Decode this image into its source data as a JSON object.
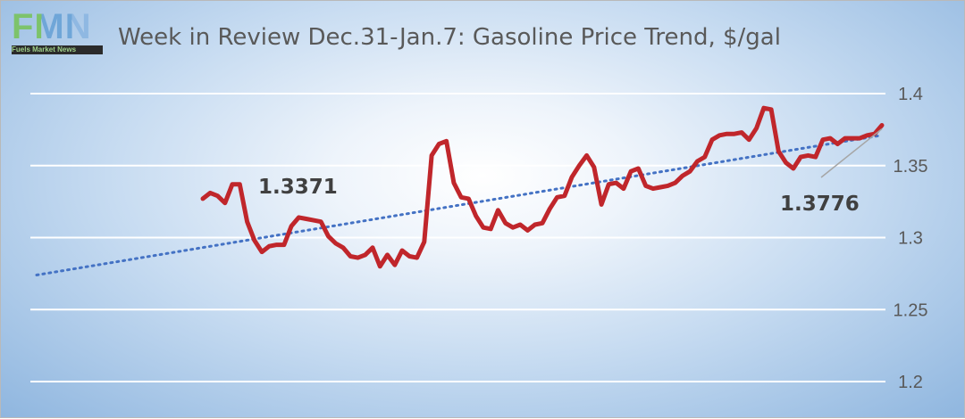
{
  "logo": {
    "letters": "FMN",
    "tagline": "Fuels Market News"
  },
  "chart_data": {
    "type": "line",
    "title": "Week in Review Dec.31-Jan.7: Gasoline Price Trend, $/gal",
    "xlabel": "",
    "ylabel": "",
    "ylim": [
      1.2,
      1.4
    ],
    "yticks": [
      1.2,
      1.25,
      1.3,
      1.35,
      1.4
    ],
    "ytick_labels": [
      "1.2",
      "1.25",
      "1.3",
      "1.35",
      "1.4"
    ],
    "grid": true,
    "legend": "none",
    "series": [
      {
        "color": "#c0262b",
        "values": [
          1.327,
          1.331,
          1.329,
          1.324,
          1.337,
          1.337,
          1.311,
          1.298,
          1.29,
          1.294,
          1.295,
          1.295,
          1.308,
          1.314,
          1.313,
          1.312,
          1.311,
          1.301,
          1.296,
          1.293,
          1.287,
          1.286,
          1.288,
          1.293,
          1.28,
          1.288,
          1.281,
          1.291,
          1.287,
          1.286,
          1.297,
          1.357,
          1.365,
          1.367,
          1.338,
          1.328,
          1.327,
          1.315,
          1.307,
          1.306,
          1.319,
          1.31,
          1.307,
          1.309,
          1.305,
          1.309,
          1.31,
          1.32,
          1.328,
          1.329,
          1.342,
          1.35,
          1.357,
          1.349,
          1.323,
          1.337,
          1.338,
          1.334,
          1.346,
          1.348,
          1.336,
          1.334,
          1.335,
          1.336,
          1.338,
          1.343,
          1.346,
          1.353,
          1.356,
          1.368,
          1.371,
          1.372,
          1.372,
          1.373,
          1.368,
          1.376,
          1.39,
          1.389,
          1.36,
          1.352,
          1.348,
          1.356,
          1.357,
          1.356,
          1.368,
          1.369,
          1.365,
          1.369,
          1.369,
          1.369,
          1.371,
          1.372,
          1.378
        ]
      },
      {
        "type": "trendline",
        "color": "#4472c4",
        "style": "dotted",
        "start": 1.274,
        "end": 1.371
      }
    ],
    "data_labels": [
      {
        "text": "1.3371",
        "point_index": 5
      },
      {
        "text": "1.3776",
        "point_index": 92
      }
    ]
  }
}
